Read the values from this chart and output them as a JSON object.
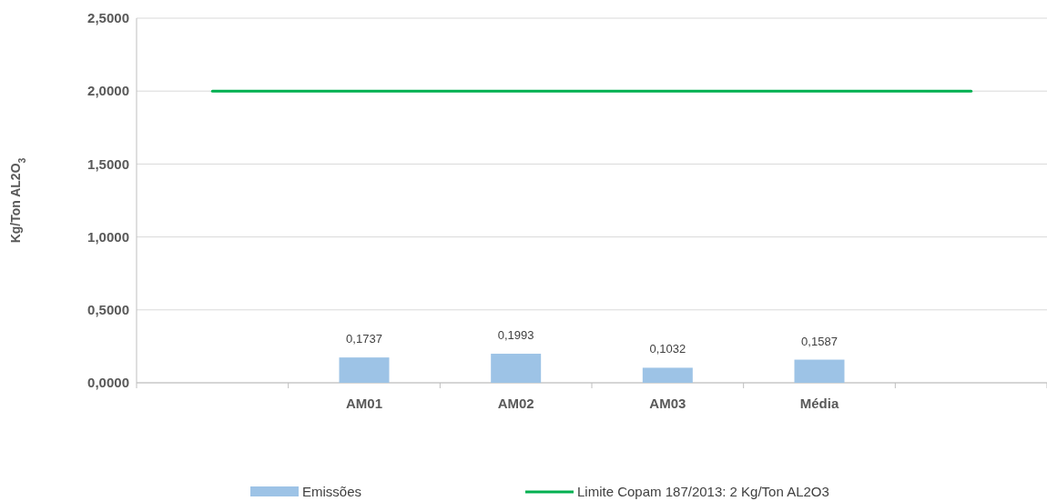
{
  "chart_data": {
    "type": "bar",
    "ylabel": "Kg/Ton AL2O$_{3}$",
    "categories": [
      null,
      "AM01",
      "AM02",
      "AM03",
      "Média",
      null
    ],
    "series": [
      {
        "name": "Emissões",
        "color": "#9dc3e6",
        "values": [
          null,
          0.1737,
          0.1993,
          0.1032,
          0.1587,
          null
        ],
        "value_labels": [
          null,
          "0,1737",
          "0,1993",
          "0,1032",
          "0,1587",
          null
        ]
      },
      {
        "name": "Limite Copam 187/2013: 2 Kg/Ton AL2O3",
        "type": "line",
        "color": "#00b050",
        "values": [
          2,
          2,
          2,
          2,
          2,
          2
        ]
      }
    ],
    "ylim": [
      0,
      2.5
    ],
    "yticks": [
      {
        "value": 0,
        "label": "0,0000"
      },
      {
        "value": 0.5,
        "label": "0,5000"
      },
      {
        "value": 1,
        "label": "1,0000"
      },
      {
        "value": 1.5,
        "label": "1,5000"
      },
      {
        "value": 2,
        "label": "2,0000"
      },
      {
        "value": 2.5,
        "label": "2,5000"
      }
    ],
    "grid": "y",
    "legend": "bottom",
    "marker": "none"
  }
}
